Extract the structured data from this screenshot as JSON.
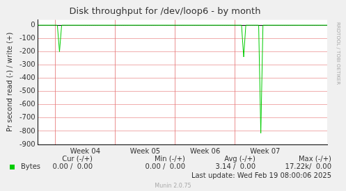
{
  "chart_data": {
    "type": "line",
    "title": "Disk throughput for /dev/loop6 - by month",
    "y_label": "Pr second read (-) / write (+)",
    "categories": [
      null,
      null,
      null,
      null,
      null,
      null,
      null,
      null,
      null,
      null,
      null,
      null,
      null,
      null,
      null,
      null,
      null,
      null,
      null,
      null,
      null,
      null,
      "Week 04",
      null,
      null,
      null,
      null,
      null,
      null,
      null,
      null,
      null,
      null,
      null,
      null,
      null,
      null,
      null,
      null,
      null,
      null,
      null,
      null,
      null,
      null,
      null,
      null,
      null,
      null,
      null,
      "Week 05",
      null,
      null,
      null,
      null,
      null,
      null,
      null,
      null,
      null,
      null,
      null,
      null,
      null,
      null,
      null,
      null,
      null,
      null,
      null,
      null,
      null,
      null,
      null,
      null,
      null,
      null,
      null,
      "Week 06",
      null,
      null,
      null,
      null,
      null,
      null,
      null,
      null,
      null,
      null,
      null,
      null,
      null,
      null,
      null,
      null,
      null,
      null,
      null,
      null,
      null,
      null,
      null,
      null,
      null,
      null,
      null,
      "Week 07",
      null,
      null,
      null,
      null,
      null,
      null,
      null,
      null,
      null,
      null,
      null,
      null,
      null,
      null,
      null,
      null,
      null,
      null,
      null,
      null,
      null,
      null,
      null,
      null,
      null,
      null,
      null,
      null,
      null
    ],
    "series": [
      {
        "name": "Bytes",
        "color": "#00cc00",
        "values": [
          0,
          0,
          0,
          0,
          0,
          0,
          0,
          0,
          0,
          0,
          -200,
          0,
          0,
          0,
          0,
          0,
          0,
          0,
          0,
          0,
          0,
          0,
          0,
          0,
          0,
          0,
          0,
          0,
          0,
          0,
          0,
          0,
          0,
          0,
          0,
          0,
          0,
          0,
          0,
          0,
          0,
          0,
          0,
          0,
          0,
          0,
          0,
          0,
          0,
          0,
          0,
          0,
          0,
          0,
          0,
          0,
          0,
          0,
          0,
          0,
          0,
          0,
          0,
          0,
          0,
          0,
          0,
          0,
          0,
          0,
          0,
          0,
          0,
          0,
          0,
          0,
          0,
          0,
          0,
          0,
          0,
          0,
          0,
          0,
          0,
          0,
          0,
          0,
          0,
          0,
          0,
          0,
          0,
          0,
          0,
          0,
          -240,
          0,
          0,
          0,
          0,
          0,
          0,
          0,
          -815,
          0,
          0,
          0,
          0,
          0,
          0,
          0,
          0,
          0,
          0,
          0,
          0,
          0,
          0,
          0,
          0,
          0,
          0,
          0,
          0,
          0,
          0,
          0,
          0,
          0,
          0,
          0,
          0,
          0,
          0,
          0
        ]
      }
    ],
    "ylim": [
      -900,
      40
    ],
    "yticks": [
      -900,
      -800,
      -700,
      -600,
      -500,
      -400,
      -300,
      -200,
      -100,
      0
    ],
    "grid": true,
    "legend_table": {
      "headers": [
        "Cur (-/+)",
        "Min (-/+)",
        "Avg (-/+)",
        "Max (-/+)"
      ],
      "rows": [
        {
          "name": "Bytes",
          "cells": [
            "0.00 /  0.00",
            "0.00 /  0.00",
            "3.14 /  0.00",
            "17.22k/  0.00"
          ]
        }
      ]
    },
    "annotations": {
      "last_update": "Last update: Wed Feb 19 08:00:06 2025",
      "credit": "Munin 2.0.75",
      "watermark": "RRDTOOL / TOBI OETIKER"
    }
  }
}
